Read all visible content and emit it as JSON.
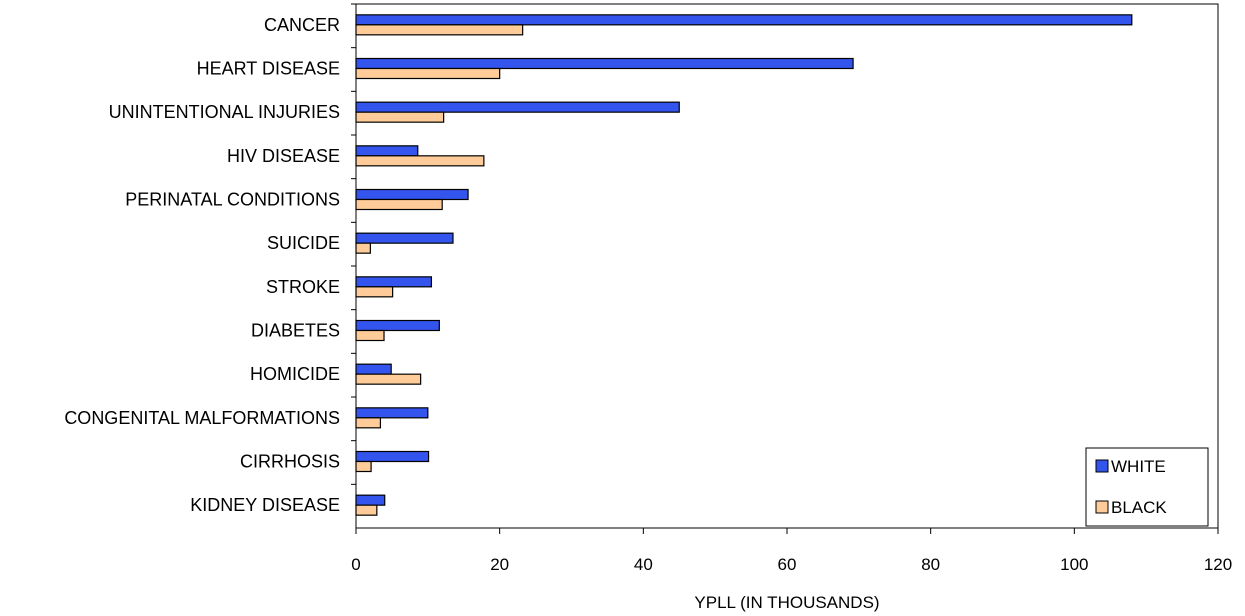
{
  "chart_data": {
    "type": "bar",
    "orientation": "horizontal",
    "xlabel": "YPLL (IN THOUSANDS)",
    "xlim": [
      0,
      120
    ],
    "xticks": [
      0,
      20,
      40,
      60,
      80,
      100,
      120
    ],
    "legend_position": "bottom-right",
    "categories": [
      "CANCER",
      "HEART DISEASE",
      "UNINTENTIONAL INJURIES",
      "HIV DISEASE",
      "PERINATAL CONDITIONS",
      "SUICIDE",
      "STROKE",
      "DIABETES",
      "HOMICIDE",
      "CONGENITAL MALFORMATIONS",
      "CIRRHOSIS",
      "KIDNEY DISEASE"
    ],
    "series": [
      {
        "name": "WHITE",
        "color": "#3355ee",
        "values": [
          108,
          69.2,
          45,
          8.6,
          15.6,
          13.5,
          10.5,
          11.6,
          4.9,
          10,
          10.1,
          4
        ]
      },
      {
        "name": "BLACK",
        "color": "#ffcc99",
        "values": [
          23.2,
          20,
          12.2,
          17.8,
          12,
          2,
          5.1,
          3.9,
          9,
          3.4,
          2.1,
          2.9
        ]
      }
    ]
  }
}
